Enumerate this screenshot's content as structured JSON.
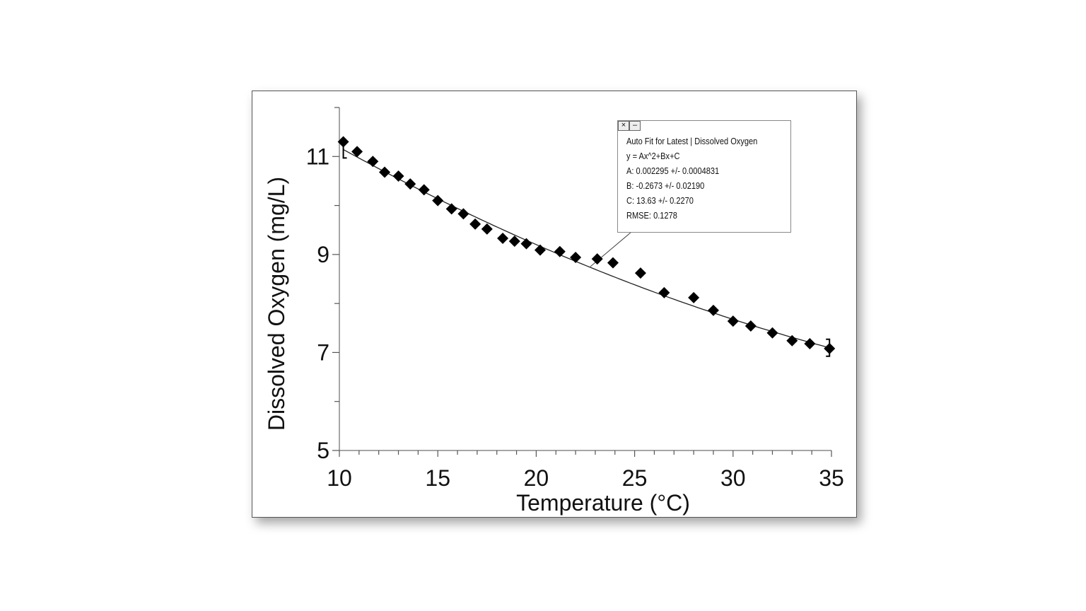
{
  "chart_data": {
    "type": "scatter",
    "xlabel": "Temperature (°C)",
    "ylabel": "Dissolved Oxygen (mg/L)",
    "xlim": [
      10,
      35
    ],
    "ylim": [
      5,
      12
    ],
    "x_ticks": [
      "10",
      "15",
      "20",
      "25",
      "30",
      "35"
    ],
    "y_ticks": [
      "5",
      "7",
      "9",
      "11"
    ],
    "grid": false,
    "marker": "diamond",
    "marker_color": "#000000",
    "points": [
      [
        10.2,
        11.3
      ],
      [
        10.9,
        11.1
      ],
      [
        11.7,
        10.9
      ],
      [
        12.3,
        10.68
      ],
      [
        13.0,
        10.6
      ],
      [
        13.6,
        10.44
      ],
      [
        14.3,
        10.32
      ],
      [
        15.0,
        10.1
      ],
      [
        15.7,
        9.93
      ],
      [
        16.3,
        9.83
      ],
      [
        16.9,
        9.62
      ],
      [
        17.5,
        9.52
      ],
      [
        18.3,
        9.33
      ],
      [
        18.9,
        9.27
      ],
      [
        19.5,
        9.22
      ],
      [
        20.2,
        9.09
      ],
      [
        21.2,
        9.06
      ],
      [
        22.0,
        8.94
      ],
      [
        23.1,
        8.91
      ],
      [
        23.9,
        8.83
      ],
      [
        25.3,
        8.62
      ],
      [
        26.5,
        8.22
      ],
      [
        28.0,
        8.12
      ],
      [
        29.0,
        7.86
      ],
      [
        30.0,
        7.64
      ],
      [
        30.9,
        7.54
      ],
      [
        32.0,
        7.4
      ],
      [
        33.0,
        7.24
      ],
      [
        33.9,
        7.18
      ],
      [
        34.9,
        7.08
      ]
    ],
    "fit": {
      "model": "quadratic",
      "A": 0.002295,
      "B": -0.2673,
      "C": 13.63,
      "range": [
        10.2,
        34.9
      ]
    },
    "annotation": {
      "title": "Auto Fit for  Latest | Dissolved Oxygen",
      "equation": "y = Ax^2+Bx+C",
      "a_line": "A: 0.002295 +/- 0.0004831",
      "b_line": "B: -0.2673 +/- 0.02190",
      "c_line": "C: 13.63 +/- 0.2270",
      "rmse_line": "RMSE: 0.1278",
      "close_label": "×",
      "minimize_label": "–"
    }
  }
}
